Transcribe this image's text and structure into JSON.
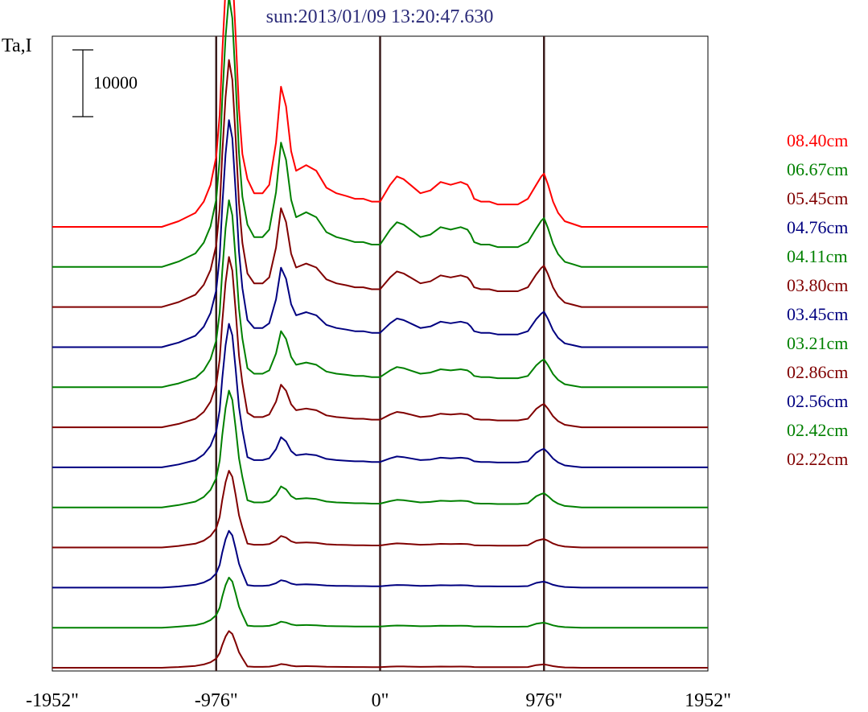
{
  "chart_data": {
    "type": "line",
    "title": "sun:2013/01/09 13:20:47.630",
    "ylabel": "Ta,I",
    "xlabel": "",
    "xlim": [
      -1952,
      1952
    ],
    "x_ticks": [
      {
        "value": -1952,
        "label": "-1952\""
      },
      {
        "value": -976,
        "label": "-976\""
      },
      {
        "value": 0,
        "label": "0\""
      },
      {
        "value": 976,
        "label": "976\""
      },
      {
        "value": 1952,
        "label": "1952\""
      }
    ],
    "vertical_lines": [
      -976,
      0,
      976
    ],
    "scale_bar": {
      "label": "10000",
      "value": 10000
    },
    "grid": false,
    "legend_position": "right",
    "x": [
      -1952,
      -1300,
      -1250,
      -1200,
      -1100,
      -1050,
      -1010,
      -976,
      -955,
      -940,
      -920,
      -900,
      -880,
      -860,
      -840,
      -820,
      -790,
      -750,
      -700,
      -660,
      -620,
      -590,
      -560,
      -530,
      -500,
      -440,
      -380,
      -320,
      -260,
      -200,
      -150,
      -100,
      -50,
      0,
      60,
      100,
      140,
      180,
      240,
      300,
      360,
      420,
      480,
      520,
      540,
      560,
      600,
      650,
      700,
      760,
      820,
      880,
      930,
      960,
      976,
      1000,
      1030,
      1060,
      1100,
      1150,
      1200,
      1250,
      1300,
      1952
    ],
    "profile": [
      0,
      0,
      0.01,
      0.02,
      0.05,
      0.09,
      0.15,
      0.25,
      0.4,
      0.62,
      0.85,
      1.0,
      0.92,
      0.68,
      0.42,
      0.26,
      0.17,
      0.12,
      0.12,
      0.15,
      0.3,
      0.5,
      0.43,
      0.27,
      0.2,
      0.22,
      0.2,
      0.14,
      0.12,
      0.11,
      0.1,
      0.1,
      0.09,
      0.09,
      0.15,
      0.18,
      0.17,
      0.15,
      0.12,
      0.13,
      0.16,
      0.15,
      0.16,
      0.15,
      0.13,
      0.1,
      0.09,
      0.09,
      0.08,
      0.08,
      0.08,
      0.1,
      0.15,
      0.18,
      0.19,
      0.15,
      0.09,
      0.05,
      0.02,
      0.01,
      0.0,
      0.0,
      0.0,
      0
    ],
    "series": [
      {
        "name": "08.40cm",
        "color": "#ff0000",
        "peak": 42000,
        "limb": 1.0,
        "secondary": 1.0
      },
      {
        "name": "06.67cm",
        "color": "#008000",
        "peak": 40500,
        "limb": 0.95,
        "secondary": 0.92
      },
      {
        "name": "05.45cm",
        "color": "#800000",
        "peak": 37000,
        "limb": 0.88,
        "secondary": 0.8
      },
      {
        "name": "04.76cm",
        "color": "#000080",
        "peak": 34000,
        "limb": 0.82,
        "secondary": 0.7
      },
      {
        "name": "04.11cm",
        "color": "#008000",
        "peak": 28000,
        "limb": 0.78,
        "secondary": 0.6
      },
      {
        "name": "03.80cm",
        "color": "#800000",
        "peak": 25500,
        "limb": 0.72,
        "secondary": 0.5
      },
      {
        "name": "03.45cm",
        "color": "#000080",
        "peak": 21500,
        "limb": 0.68,
        "secondary": 0.42
      },
      {
        "name": "03.21cm",
        "color": "#008000",
        "peak": 17500,
        "limb": 0.64,
        "secondary": 0.36
      },
      {
        "name": "02.86cm",
        "color": "#800000",
        "peak": 11500,
        "limb": 0.58,
        "secondary": 0.3
      },
      {
        "name": "02.56cm",
        "color": "#000080",
        "peak": 8500,
        "limb": 0.55,
        "secondary": 0.26
      },
      {
        "name": "02.42cm",
        "color": "#008000",
        "peak": 7500,
        "limb": 0.52,
        "secondary": 0.24
      },
      {
        "name": "02.22cm",
        "color": "#800000",
        "peak": 5500,
        "limb": 0.48,
        "secondary": 0.2
      }
    ]
  }
}
